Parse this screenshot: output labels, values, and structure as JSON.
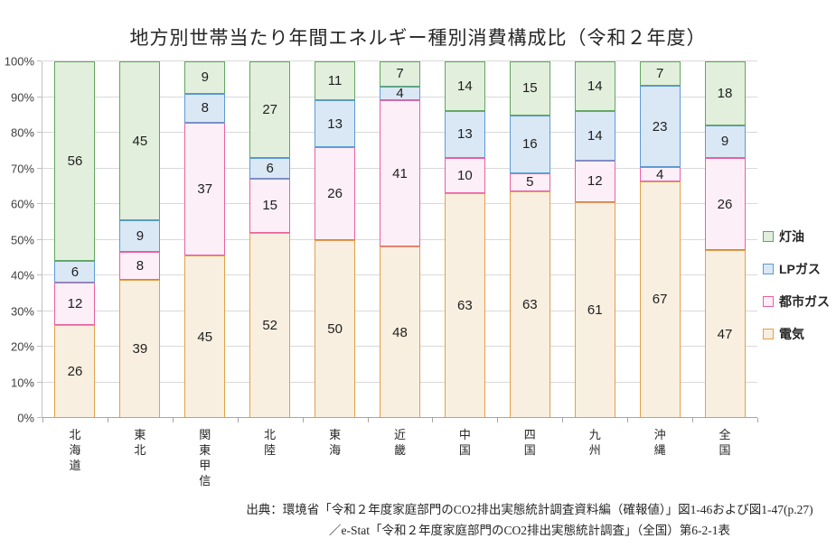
{
  "title": "地方別世帯当たり年間エネルギー種別消費構成比（令和２年度）",
  "chart_data": {
    "type": "bar",
    "stacked": true,
    "unit": "%",
    "title": "地方別世帯当たり年間エネルギー種別消費構成比（令和２年度）",
    "categories": [
      "北海道",
      "東北",
      "関東甲信",
      "北陸",
      "東海",
      "近畿",
      "中国",
      "四国",
      "九州",
      "沖縄",
      "全国"
    ],
    "series": [
      {
        "name": "電気",
        "fill": "#F9EFE0",
        "border": "#E2A049",
        "values": [
          26,
          39,
          45,
          52,
          50,
          48,
          63,
          63,
          61,
          67,
          47
        ]
      },
      {
        "name": "都市ガス",
        "fill": "#FCEFF7",
        "border": "#E8629F",
        "values": [
          12,
          8,
          37,
          15,
          26,
          41,
          10,
          5,
          12,
          4,
          26
        ]
      },
      {
        "name": "LPガス",
        "fill": "#DAE8F5",
        "border": "#5B9BD5",
        "values": [
          6,
          9,
          8,
          6,
          13,
          4,
          13,
          16,
          14,
          23,
          9
        ]
      },
      {
        "name": "灯油",
        "fill": "#E2EFDC",
        "border": "#61A65F",
        "values": [
          56,
          45,
          9,
          27,
          11,
          7,
          14,
          15,
          14,
          7,
          18
        ]
      }
    ],
    "legend_order_top_to_bottom": [
      "灯油",
      "LPガス",
      "都市ガス",
      "電気"
    ],
    "legend_position": "right",
    "y_ticks": [
      "0%",
      "10%",
      "20%",
      "30%",
      "40%",
      "50%",
      "60%",
      "70%",
      "80%",
      "90%",
      "100%"
    ],
    "ylim": [
      0,
      100
    ],
    "grid": true
  },
  "source": {
    "line1": "出典：環境省「令和２年度家庭部門のCO2排出実態統計調査資料編（確報値）」図1-46および図1-47(p.27)",
    "line2": "／e-Stat「令和２年度家庭部門のCO2排出実態統計調査」（全国）第6-2-1表"
  }
}
